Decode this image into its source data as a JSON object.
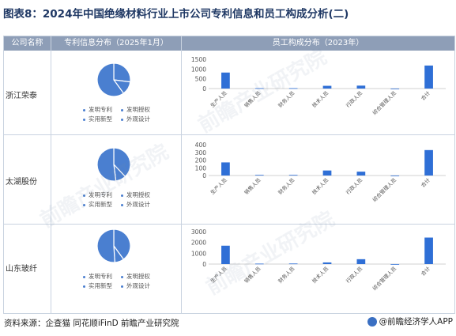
{
  "title": "图表8：2024年中国绝缘材料行业上市公司专利信息和员工构成分析(二)",
  "headers": {
    "company": "公司名称",
    "patent": "专利信息分布（2025年1月）",
    "staff": "员工构成分布（2023年）"
  },
  "pie_legend": [
    "发明专利",
    "发明授权",
    "实用新型",
    "外观设计"
  ],
  "source": "资料来源：企查猫 同花顺iFinD 前瞻产业研究院",
  "brand": "@前瞻经济学人APP",
  "watermark": "前瞻产业研究院",
  "colors": {
    "bar": "#2f6fd6",
    "pie": "#4a7fd0",
    "header": "#8e9eb7"
  },
  "chart_data": [
    {
      "company": "浙江荣泰",
      "type": "bar",
      "categories": [
        "生产人员",
        "销售人员",
        "财务人员",
        "技术人员",
        "行政人员",
        "综合管理人员",
        "合计"
      ],
      "values": [
        820,
        20,
        20,
        140,
        150,
        0,
        1180
      ],
      "yticks": [
        0,
        500,
        1000,
        1500
      ],
      "ylim": [
        0,
        1500
      ],
      "pie": {
        "type": "pie",
        "labels": [
          "发明专利",
          "发明授权",
          "实用新型",
          "外观设计"
        ],
        "values": [
          27,
          13,
          60,
          0
        ]
      }
    },
    {
      "company": "太湖股份",
      "type": "bar",
      "categories": [
        "生产人员",
        "销售人员",
        "财务人员",
        "技术人员",
        "行政人员",
        "综合管理人员",
        "合计"
      ],
      "values": [
        170,
        8,
        8,
        65,
        50,
        0,
        330
      ],
      "yticks": [
        0,
        100,
        200,
        300,
        400
      ],
      "ylim": [
        0,
        400
      ],
      "pie": {
        "type": "pie",
        "labels": [
          "发明专利",
          "发明授权",
          "实用新型",
          "外观设计"
        ],
        "values": [
          38,
          10,
          52,
          0
        ]
      }
    },
    {
      "company": "山东玻纤",
      "type": "bar",
      "categories": [
        "生产人员",
        "销售人员",
        "财务人员",
        "技术人员",
        "行政人员",
        "综合管理人员",
        "合计"
      ],
      "values": [
        1700,
        40,
        50,
        150,
        450,
        0,
        2450
      ],
      "yticks": [
        0,
        1000,
        2000,
        3000
      ],
      "ylim": [
        0,
        3000
      ],
      "pie": {
        "type": "pie",
        "labels": [
          "发明专利",
          "发明授权",
          "实用新型",
          "外观设计"
        ],
        "values": [
          40,
          9,
          51,
          0
        ]
      }
    }
  ]
}
